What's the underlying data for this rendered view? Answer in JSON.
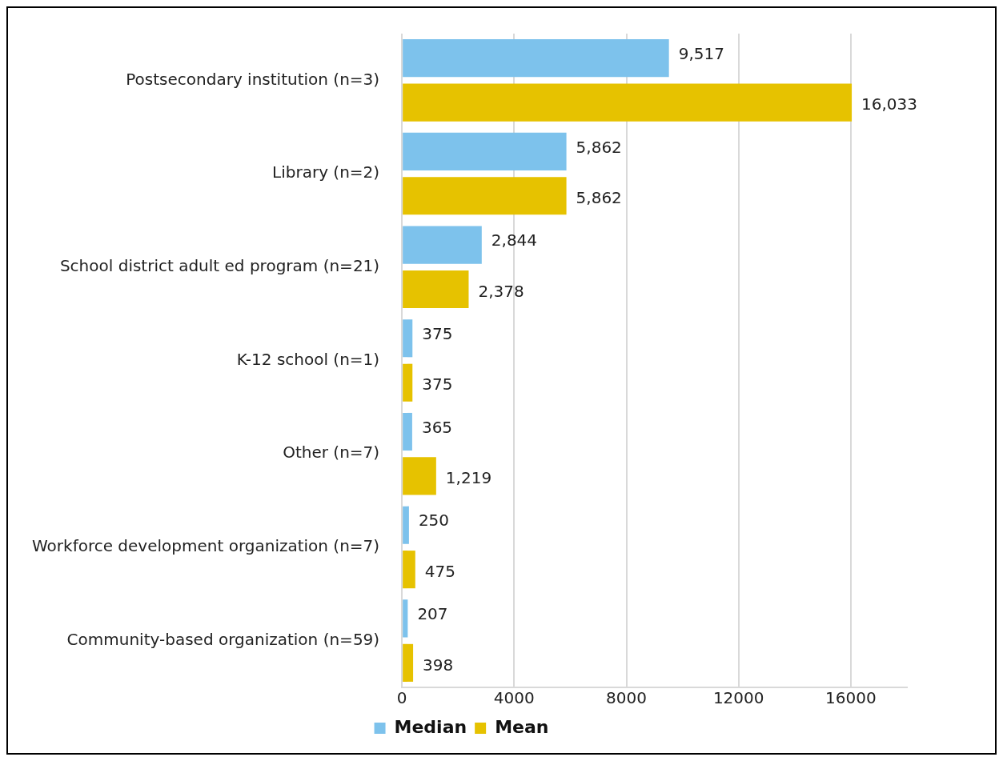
{
  "chart_data": {
    "type": "bar",
    "orientation": "horizontal",
    "categories": [
      "Postsecondary institution (n=3)",
      "Library (n=2)",
      "School district adult ed program (n=21)",
      "K-12 school (n=1)",
      "Other (n=7)",
      "Workforce development organization (n=7)",
      "Community-based organization (n=59)"
    ],
    "series": [
      {
        "name": "Median",
        "color": "#7dc2ec",
        "values": [
          9517,
          5862,
          2844,
          375,
          365,
          250,
          207
        ],
        "value_labels": [
          "9,517",
          "5,862",
          "2,844",
          "375",
          "365",
          "250",
          "207"
        ]
      },
      {
        "name": "Mean",
        "color": "#e6c200",
        "values": [
          16033,
          5862,
          2378,
          375,
          1219,
          475,
          398
        ],
        "value_labels": [
          "16,033",
          "5,862",
          "2,378",
          "375",
          "1,219",
          "475",
          "398"
        ]
      }
    ],
    "xlim": [
      0,
      18000
    ],
    "xticks": [
      0,
      4000,
      8000,
      12000,
      16000
    ],
    "grid": "x",
    "legend": "bottom"
  }
}
